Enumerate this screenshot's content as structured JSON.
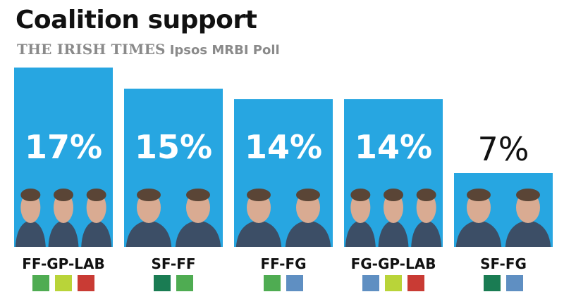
{
  "header": {
    "title": "Coalition support",
    "publisher": "THE IRISH TIMES",
    "poll": "Ipsos MRBI Poll"
  },
  "colors": {
    "bar": "#27a6e1",
    "FF": "#4fac52",
    "GP": "#b9d439",
    "LAB": "#c93b34",
    "SF": "#1a7c53",
    "FG": "#5f8fc2",
    "photo": "#3c4e66",
    "value_on_bar": "#ffffff",
    "value_above_bar": "#111111"
  },
  "chart_data": {
    "type": "bar",
    "title": "Coalition support",
    "categories": [
      "FF-GP-LAB",
      "SF-FF",
      "FF-FG",
      "FG-GP-LAB",
      "SF-FG"
    ],
    "values": [
      17,
      15,
      14,
      14,
      7
    ],
    "value_labels": [
      "17%",
      "15%",
      "14%",
      "14%",
      "7%"
    ],
    "unit": "%",
    "ylim": [
      0,
      17
    ],
    "grid": false,
    "party_swatches": [
      [
        "FF",
        "GP",
        "LAB"
      ],
      [
        "SF",
        "FF"
      ],
      [
        "FF",
        "FG"
      ],
      [
        "FG",
        "GP",
        "LAB"
      ],
      [
        "SF",
        "FG"
      ]
    ]
  }
}
